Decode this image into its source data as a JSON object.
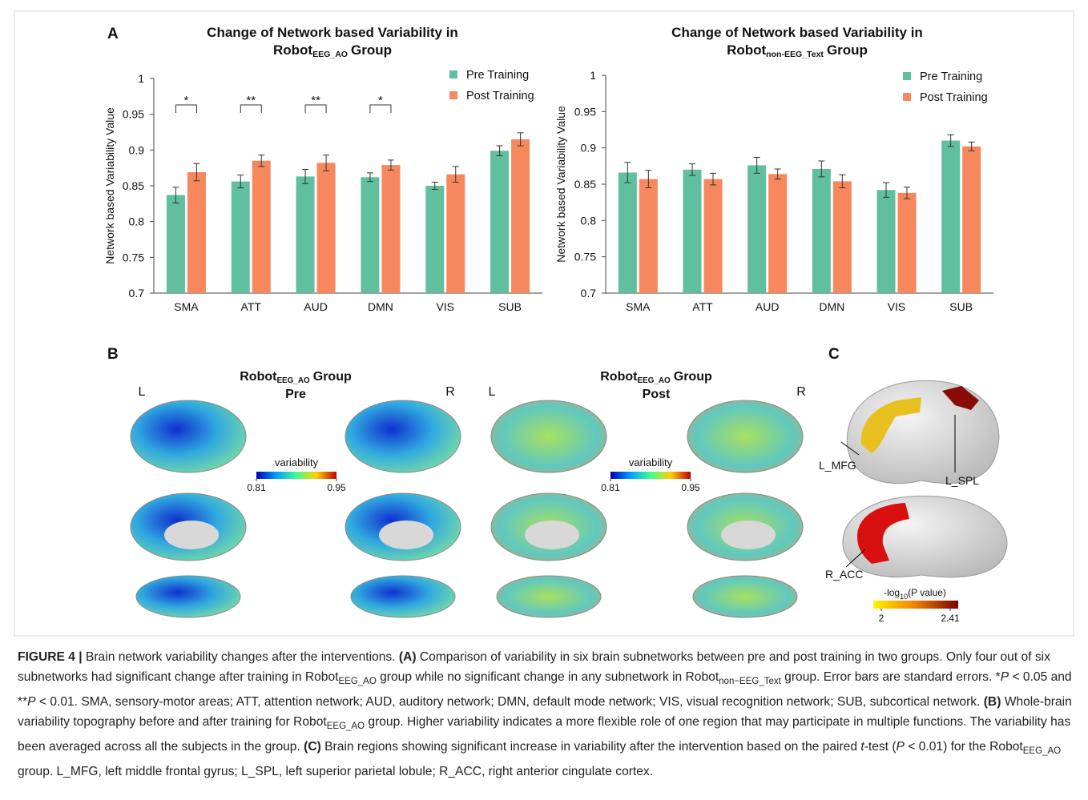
{
  "chart_data": [
    {
      "type": "bar",
      "panel": "A",
      "title": "Change of Network based Variability in",
      "group_name": "Robot",
      "group_subscript": "EEG_AO",
      "group_suffix": "Group",
      "ylabel": "Network based  Variability Value",
      "categories": [
        "SMA",
        "ATT",
        "AUD",
        "DMN",
        "VIS",
        "SUB"
      ],
      "series": [
        {
          "name": "Pre Training",
          "color": "#5fbf9f",
          "values": [
            0.837,
            0.856,
            0.863,
            0.862,
            0.85,
            0.899
          ],
          "errors": [
            0.011,
            0.009,
            0.01,
            0.006,
            0.005,
            0.007
          ]
        },
        {
          "name": "Post Training",
          "color": "#f7875c",
          "values": [
            0.869,
            0.885,
            0.882,
            0.879,
            0.866,
            0.915
          ],
          "errors": [
            0.012,
            0.008,
            0.011,
            0.007,
            0.011,
            0.009
          ]
        }
      ],
      "significance": [
        "*",
        "**",
        "**",
        "*",
        null,
        null
      ],
      "ylim": [
        0.7,
        1
      ],
      "yticks": [
        0.7,
        0.75,
        0.8,
        0.85,
        0.9,
        0.95,
        1
      ],
      "grid": false
    },
    {
      "type": "bar",
      "title": "Change of Network based Variability in",
      "group_name": "Robot",
      "group_subscript": "non-EEG_Text",
      "group_suffix": "Group",
      "ylabel": "Network based Variability Value",
      "categories": [
        "SMA",
        "ATT",
        "AUD",
        "DMN",
        "VIS",
        "SUB"
      ],
      "series": [
        {
          "name": "Pre Training",
          "color": "#5fbf9f",
          "values": [
            0.866,
            0.87,
            0.876,
            0.871,
            0.842,
            0.91
          ],
          "errors": [
            0.014,
            0.008,
            0.011,
            0.011,
            0.01,
            0.008
          ]
        },
        {
          "name": "Post Training",
          "color": "#f7875c",
          "values": [
            0.857,
            0.857,
            0.864,
            0.854,
            0.838,
            0.902
          ],
          "errors": [
            0.012,
            0.008,
            0.007,
            0.009,
            0.008,
            0.006
          ]
        }
      ],
      "ylim": [
        0.7,
        1
      ],
      "yticks": [
        0.7,
        0.75,
        0.8,
        0.85,
        0.9,
        0.95,
        1
      ],
      "grid": false
    }
  ],
  "panel_b": {
    "label": "B",
    "groups": [
      {
        "name": "Robot",
        "subscript": "EEG_AO",
        "suffix": "Group",
        "condition": "Pre",
        "left": "L",
        "right": "R"
      },
      {
        "name": "Robot",
        "subscript": "EEG_AO",
        "suffix": "Group",
        "condition": "Post",
        "left": "L",
        "right": "R"
      }
    ],
    "colorbar": {
      "label": "variability",
      "ticks": [
        0.81,
        0.95
      ]
    }
  },
  "panel_c": {
    "label": "C",
    "regions": [
      "L_MFG",
      "L_SPL",
      "R_ACC"
    ],
    "colorbar": {
      "label": [
        "-log",
        "10",
        "(P value)"
      ],
      "ticks": [
        2,
        2.41
      ]
    }
  },
  "caption": [
    "FIGURE 4 |",
    " Brain network variability changes after the interventions. ",
    "(A)",
    " Comparison of variability in six brain subnetworks between pre and post training in two groups. Only four out of six subnetworks had significant change after training in Robot",
    "EEG_AO",
    " group while no significant change in any subnetwork in Robot",
    "non−EEG_Text",
    " group. Error bars are standard errors. *",
    "P",
    " < 0.05 and **",
    "P",
    " < 0.01. SMA, sensory-motor areas; ATT, attention network; AUD, auditory network; DMN, default mode network; VIS, visual recognition network; SUB, subcortical network. ",
    "(B)",
    " Whole-brain variability topography before and after training for Robot",
    "EEG_AO",
    " group. Higher variability indicates a more flexible role of one region that may participate in multiple functions. The variability has been averaged across all the subjects in the group. ",
    "(C)",
    " Brain regions showing significant increase in variability after the intervention based on the paired ",
    "t",
    "-test (",
    "P",
    " < 0.01) for the Robot",
    "EEG_AO",
    " group. L_MFG, left middle frontal gyrus; L_SPL, left superior parietal lobule; R_ACC, right anterior cingulate cortex."
  ]
}
